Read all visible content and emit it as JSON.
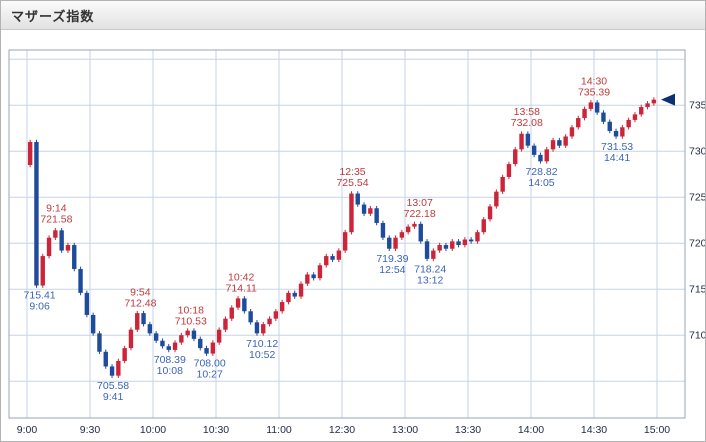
{
  "header": {
    "title": "マザーズ指数"
  },
  "colors": {
    "up": "#cc2438",
    "down": "#1e4b9b",
    "grid": "#c7d3e6",
    "plot_border": "#9aa4b8",
    "ann_high": "#c03a3a",
    "ann_low": "#3a64b8",
    "axis_text": "#222c46",
    "marker": "#0d2f73",
    "background": "#ffffff"
  },
  "chart_data": {
    "type": "candlestick",
    "title": "マザーズ指数",
    "x_tick_labels": [
      "9:00",
      "9:30",
      "10:00",
      "10:30",
      "11:00",
      "12:30",
      "13:00",
      "13:30",
      "14:00",
      "14:30",
      "15:00"
    ],
    "y_tick_labels": [
      "735",
      "730",
      "725",
      "720",
      "715",
      "710"
    ],
    "ylim": [
      701,
      741
    ],
    "y_grid_step": 5,
    "grid": true,
    "candle_interval_minutes": 3,
    "open_first": 728.5,
    "closes": [
      731.0,
      715.4,
      718.6,
      720.6,
      721.4,
      719.2,
      719.8,
      717.2,
      714.6,
      712.2,
      710.2,
      708.2,
      706.6,
      705.6,
      707.2,
      708.6,
      710.6,
      712.4,
      711.2,
      710.2,
      709.4,
      708.8,
      708.4,
      709.2,
      710.0,
      710.5,
      709.6,
      708.6,
      708.0,
      709.2,
      710.6,
      711.8,
      713.0,
      714.0,
      712.6,
      711.4,
      710.2,
      711.2,
      711.8,
      712.6,
      713.6,
      714.6,
      714.2,
      715.6,
      716.6,
      716.2,
      717.6,
      718.6,
      718.2,
      719.2,
      721.2,
      725.4,
      724.2,
      723.2,
      723.8,
      722.2,
      720.6,
      719.4,
      720.6,
      721.2,
      721.8,
      722.1,
      720.2,
      718.3,
      719.2,
      719.8,
      719.4,
      720.2,
      719.8,
      720.4,
      720.2,
      721.2,
      722.6,
      724.0,
      725.6,
      727.2,
      728.6,
      730.2,
      731.9,
      730.6,
      729.6,
      728.9,
      730.2,
      731.2,
      730.6,
      731.6,
      732.6,
      733.6,
      734.6,
      735.3,
      734.2,
      733.2,
      732.2,
      731.6,
      732.6,
      733.4,
      734.0,
      734.8,
      735.2,
      735.6
    ],
    "annotations": [
      {
        "kind": "high",
        "time": "9:14",
        "value": "721.58",
        "price": 721.58
      },
      {
        "kind": "high",
        "time": "9:54",
        "value": "712.48",
        "price": 712.48
      },
      {
        "kind": "high",
        "time": "10:18",
        "value": "710.53",
        "price": 710.53
      },
      {
        "kind": "high",
        "time": "10:42",
        "value": "714.11",
        "price": 714.11
      },
      {
        "kind": "high",
        "time": "12:35",
        "value": "725.54",
        "price": 725.54
      },
      {
        "kind": "high",
        "time": "13:07",
        "value": "722.18",
        "price": 722.18
      },
      {
        "kind": "high",
        "time": "13:58",
        "value": "732.08",
        "price": 732.08
      },
      {
        "kind": "high",
        "time": "14:30",
        "value": "735.39",
        "price": 735.39
      },
      {
        "kind": "low",
        "time": "9:06",
        "value": "715.41",
        "price": 715.41
      },
      {
        "kind": "low",
        "time": "9:41",
        "value": "705.58",
        "price": 705.58
      },
      {
        "kind": "low",
        "time": "10:08",
        "value": "708.39",
        "price": 708.39
      },
      {
        "kind": "low",
        "time": "10:27",
        "value": "708.00",
        "price": 708.0
      },
      {
        "kind": "low",
        "time": "10:52",
        "value": "710.12",
        "price": 710.12
      },
      {
        "kind": "low",
        "time": "12:54",
        "value": "719.39",
        "price": 719.39
      },
      {
        "kind": "low",
        "time": "13:12",
        "value": "718.24",
        "price": 718.24
      },
      {
        "kind": "low",
        "time": "14:05",
        "value": "728.82",
        "price": 728.82
      },
      {
        "kind": "low",
        "time": "14:41",
        "value": "731.53",
        "price": 731.53
      }
    ],
    "last_marker": {
      "time": "15:00",
      "price": 735.6
    }
  }
}
